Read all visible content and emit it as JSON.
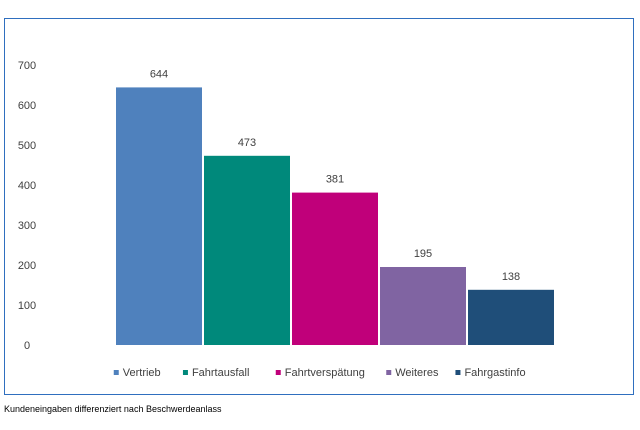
{
  "caption": "Kundeneingaben differenziert nach Beschwerdeanlass",
  "chart_data": {
    "type": "bar",
    "categories": [
      "Vertrieb",
      "Fahrtausfall",
      "Fahrtverspätung",
      "Weiteres",
      "Fahrgastinfo"
    ],
    "values": [
      644,
      473,
      381,
      195,
      138
    ],
    "colors": [
      "#4f81bd",
      "#00897b",
      "#c0007a",
      "#8064a2",
      "#1f4e79"
    ],
    "ylim": [
      0,
      700
    ],
    "yticks": [
      0,
      100,
      200,
      300,
      400,
      500,
      600,
      700
    ],
    "grid": false,
    "legend": "bottom",
    "title": "",
    "xlabel": "",
    "ylabel": ""
  }
}
